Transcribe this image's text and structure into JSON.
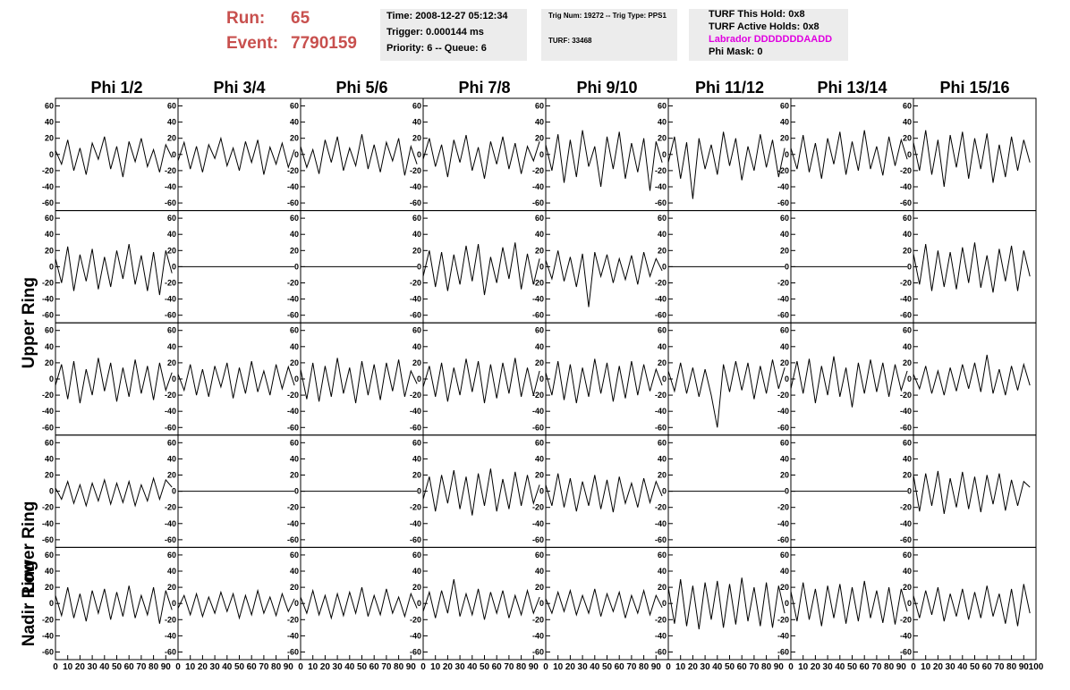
{
  "header": {
    "run_label": "Run:",
    "run": "65",
    "event_label": "Event:",
    "event": "7790159",
    "time": "Time: 2008-12-27 05:12:34",
    "trigger": "Trigger: 0.000144 ms",
    "priority": "Priority: 6 -- Queue: 6",
    "trig_num": "Trig Num: 19272 -- Trig Type: PPS1",
    "turf": "TURF: 33468",
    "turf_hold": "TURF This Hold: 0x8",
    "turf_active": "TURF Active Holds: 0x8",
    "labrador": "Labrador DDDDDDDAADD",
    "phi_mask": "Phi Mask: 0"
  },
  "chart_data": {
    "type": "line",
    "color": "#000000",
    "column_titles": [
      "Phi 1/2",
      "Phi 3/4",
      "Phi 5/6",
      "Phi 7/8",
      "Phi 9/10",
      "Phi 11/12",
      "Phi 13/14",
      "Phi 15/16"
    ],
    "row_labels": [
      "Upper Ring",
      "Lower Ring",
      "Nadir Ring"
    ],
    "xlim": [
      0,
      100
    ],
    "xticks": [
      0,
      10,
      20,
      30,
      40,
      50,
      60,
      70,
      80,
      90,
      100
    ],
    "ylim": [
      -65,
      65
    ],
    "yticks": [
      -60,
      -40,
      -20,
      0,
      20,
      40,
      60
    ],
    "x": [
      0,
      5,
      10,
      15,
      20,
      25,
      30,
      35,
      40,
      45,
      50,
      55,
      60,
      65,
      70,
      75,
      80,
      85,
      90,
      95
    ],
    "series": [
      {
        "values": [
          5,
          -12,
          18,
          -20,
          8,
          -25,
          14,
          -6,
          22,
          -18,
          10,
          -28,
          16,
          -9,
          20,
          -15,
          6,
          -22,
          12,
          -4
        ]
      },
      {
        "values": [
          -8,
          15,
          -18,
          10,
          -22,
          12,
          -5,
          20,
          -14,
          8,
          -20,
          16,
          -10,
          18,
          -25,
          9,
          -12,
          14,
          -16,
          6
        ]
      },
      {
        "values": [
          10,
          -16,
          6,
          -24,
          18,
          -10,
          22,
          -20,
          8,
          -14,
          25,
          -18,
          12,
          -22,
          15,
          -8,
          20,
          -26,
          10,
          -12
        ]
      },
      {
        "values": [
          -6,
          20,
          -15,
          12,
          -28,
          18,
          -10,
          24,
          -20,
          9,
          -30,
          16,
          -12,
          22,
          -18,
          14,
          -24,
          10,
          -8,
          16
        ]
      },
      {
        "values": [
          12,
          -20,
          25,
          -35,
          18,
          -28,
          30,
          -15,
          10,
          -40,
          22,
          -18,
          28,
          -30,
          14,
          -22,
          20,
          -45,
          16,
          -10
        ]
      },
      {
        "values": [
          -10,
          22,
          -30,
          15,
          -55,
          20,
          -18,
          12,
          -25,
          28,
          -14,
          20,
          -32,
          10,
          -20,
          25,
          -16,
          18,
          -28,
          8
        ]
      },
      {
        "values": [
          8,
          -18,
          24,
          -22,
          14,
          -30,
          20,
          -12,
          28,
          -25,
          16,
          -20,
          30,
          -18,
          10,
          -26,
          22,
          -14,
          18,
          -6
        ]
      },
      {
        "values": [
          15,
          -20,
          30,
          -25,
          18,
          -40,
          24,
          -16,
          28,
          -30,
          20,
          -18,
          26,
          -35,
          12,
          -28,
          22,
          -20,
          18,
          -10
        ]
      },
      {
        "values": [
          10,
          -20,
          25,
          -30,
          15,
          -18,
          22,
          -28,
          12,
          -25,
          20,
          -15,
          28,
          -22,
          14,
          -30,
          18,
          -35,
          20,
          -8
        ]
      },
      {
        "values": [
          0,
          0,
          0,
          0,
          0,
          0,
          0,
          0,
          0,
          0,
          0,
          0,
          0,
          0,
          0,
          0,
          0,
          0,
          0,
          0
        ]
      },
      {
        "values": [
          0,
          0,
          0,
          0,
          0,
          0,
          0,
          0,
          0,
          0,
          0,
          0,
          0,
          0,
          0,
          0,
          0,
          0,
          0,
          0
        ]
      },
      {
        "values": [
          -12,
          20,
          -25,
          18,
          -30,
          15,
          -22,
          26,
          -18,
          28,
          -35,
          12,
          -20,
          24,
          -15,
          30,
          -28,
          16,
          -22,
          10
        ]
      },
      {
        "values": [
          8,
          -15,
          20,
          -18,
          12,
          -25,
          16,
          -50,
          18,
          -12,
          15,
          -20,
          10,
          -16,
          14,
          -22,
          18,
          -12,
          10,
          -5
        ]
      },
      {
        "values": [
          0,
          0,
          0,
          0,
          0,
          0,
          0,
          0,
          0,
          0,
          0,
          0,
          0,
          0,
          0,
          0,
          0,
          0,
          0,
          0
        ]
      },
      {
        "values": [
          0,
          0,
          0,
          0,
          0,
          0,
          0,
          0,
          0,
          0,
          0,
          0,
          0,
          0,
          0,
          0,
          0,
          0,
          0,
          0
        ]
      },
      {
        "values": [
          16,
          -22,
          28,
          -30,
          20,
          -25,
          18,
          -28,
          24,
          -20,
          30,
          -26,
          14,
          -32,
          22,
          -18,
          26,
          -30,
          20,
          -12
        ]
      },
      {
        "values": [
          -8,
          18,
          -25,
          22,
          -30,
          12,
          -20,
          26,
          -15,
          20,
          -28,
          14,
          -22,
          24,
          -18,
          16,
          -26,
          20,
          -14,
          8
        ]
      },
      {
        "values": [
          6,
          -14,
          18,
          -20,
          12,
          -22,
          16,
          -10,
          20,
          -24,
          14,
          -18,
          22,
          -16,
          10,
          -20,
          18,
          -12,
          15,
          -8
        ]
      },
      {
        "values": [
          12,
          -25,
          20,
          -28,
          16,
          -22,
          26,
          -18,
          14,
          -30,
          22,
          -20,
          18,
          -26,
          20,
          -15,
          24,
          -22,
          10,
          -6
        ]
      },
      {
        "values": [
          -10,
          16,
          -22,
          20,
          -28,
          14,
          -20,
          25,
          -16,
          22,
          -30,
          18,
          -24,
          20,
          -18,
          26,
          -22,
          14,
          -20,
          10
        ]
      },
      {
        "values": [
          8,
          -20,
          22,
          -26,
          18,
          -30,
          14,
          -22,
          25,
          -18,
          20,
          -28,
          16,
          -24,
          22,
          -20,
          18,
          -15,
          12,
          -8
        ]
      },
      {
        "values": [
          10,
          -15,
          20,
          -18,
          14,
          -22,
          12,
          -20,
          -60,
          18,
          -16,
          22,
          -14,
          20,
          -25,
          16,
          -18,
          24,
          -12,
          14
        ]
      },
      {
        "values": [
          -12,
          22,
          -18,
          25,
          -30,
          16,
          -20,
          28,
          -22,
          14,
          -35,
          20,
          -18,
          24,
          -16,
          20,
          -22,
          18,
          -14,
          10
        ]
      },
      {
        "values": [
          6,
          -12,
          16,
          -18,
          10,
          -20,
          14,
          -15,
          18,
          -12,
          20,
          -16,
          30,
          -18,
          12,
          -20,
          16,
          -14,
          18,
          -8
        ]
      },
      {
        "values": [
          4,
          -10,
          12,
          -15,
          8,
          -18,
          10,
          -12,
          14,
          -16,
          10,
          -14,
          12,
          -18,
          8,
          -12,
          16,
          -10,
          14,
          5
        ]
      },
      {
        "values": [
          0,
          0,
          0,
          0,
          0,
          0,
          0,
          0,
          0,
          0,
          0,
          0,
          0,
          0,
          0,
          0,
          0,
          0,
          0,
          0
        ]
      },
      {
        "values": [
          0,
          0,
          0,
          0,
          0,
          0,
          0,
          0,
          0,
          0,
          0,
          0,
          0,
          0,
          0,
          0,
          0,
          0,
          0,
          0
        ]
      },
      {
        "values": [
          -10,
          18,
          -25,
          20,
          -15,
          26,
          -22,
          18,
          -30,
          22,
          -18,
          28,
          -25,
          15,
          -22,
          24,
          -18,
          20,
          -15,
          8
        ]
      },
      {
        "values": [
          8,
          -18,
          22,
          -20,
          16,
          -25,
          12,
          -18,
          20,
          -22,
          14,
          -26,
          18,
          -15,
          10,
          -20,
          16,
          -14,
          12,
          -6
        ]
      },
      {
        "values": [
          0,
          0,
          0,
          0,
          0,
          0,
          0,
          0,
          0,
          0,
          0,
          0,
          0,
          0,
          0,
          0,
          0,
          0,
          0,
          0
        ]
      },
      {
        "values": [
          0,
          0,
          0,
          0,
          0,
          0,
          0,
          0,
          0,
          0,
          0,
          0,
          0,
          0,
          0,
          0,
          0,
          0,
          0,
          0
        ]
      },
      {
        "values": [
          20,
          -25,
          22,
          -18,
          25,
          -28,
          16,
          -20,
          24,
          -22,
          18,
          -26,
          20,
          -16,
          22,
          -24,
          14,
          -18,
          12,
          5
        ]
      },
      {
        "values": [
          10,
          -15,
          20,
          -18,
          12,
          -22,
          16,
          -12,
          18,
          -20,
          14,
          -16,
          22,
          -18,
          10,
          -14,
          20,
          -25,
          16,
          -8
        ]
      },
      {
        "values": [
          -6,
          10,
          -14,
          12,
          -16,
          8,
          -12,
          14,
          -10,
          12,
          -18,
          10,
          -14,
          16,
          -12,
          8,
          -15,
          12,
          -10,
          6
        ]
      },
      {
        "values": [
          8,
          -12,
          16,
          -14,
          10,
          -18,
          12,
          -15,
          14,
          -12,
          20,
          -16,
          10,
          -14,
          18,
          -12,
          8,
          -16,
          12,
          -6
        ]
      },
      {
        "values": [
          -10,
          14,
          -18,
          16,
          -12,
          30,
          -16,
          12,
          -14,
          18,
          -20,
          14,
          -12,
          16,
          -18,
          10,
          -14,
          16,
          -12,
          8
        ]
      },
      {
        "values": [
          6,
          -12,
          14,
          -10,
          16,
          -14,
          10,
          -12,
          18,
          -16,
          12,
          -10,
          14,
          -18,
          10,
          -12,
          16,
          -14,
          10,
          -5
        ]
      },
      {
        "values": [
          20,
          -25,
          30,
          -28,
          22,
          -32,
          26,
          -20,
          28,
          -30,
          24,
          -26,
          32,
          -22,
          20,
          -28,
          26,
          -30,
          22,
          -12
        ]
      },
      {
        "values": [
          15,
          -22,
          26,
          -20,
          18,
          -28,
          22,
          -18,
          24,
          -25,
          20,
          -22,
          28,
          -18,
          16,
          -24,
          20,
          -26,
          18,
          -10
        ]
      },
      {
        "values": [
          10,
          -18,
          16,
          -14,
          20,
          -22,
          12,
          -16,
          18,
          -20,
          14,
          -18,
          22,
          -16,
          12,
          -25,
          18,
          -28,
          24,
          -12
        ]
      }
    ]
  }
}
